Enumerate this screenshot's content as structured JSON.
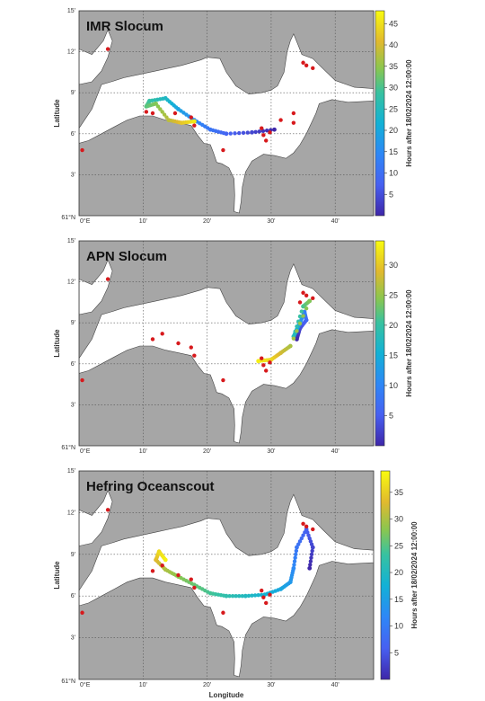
{
  "panels": [
    {
      "title": "IMR Slocum",
      "cbar_max": 48,
      "cbar_ticks": [
        "5",
        "10",
        "15",
        "20",
        "25",
        "30",
        "35",
        "40",
        "45"
      ],
      "cbar_tick_values": [
        5,
        10,
        15,
        20,
        25,
        30,
        35,
        40,
        45
      ],
      "cbar_label": "Hours after 18/02/2024 12:00:00",
      "ylabel": "Latitude",
      "xlabel": "",
      "lat_ticks": [
        "3'",
        "6'",
        "9'",
        "12'",
        "15'"
      ],
      "lon_ticks": [
        "10'",
        "20'",
        "30'",
        "40'"
      ],
      "origin_lat": "61°N",
      "origin_lon": "0°E",
      "track": [
        {
          "x": 30.5,
          "y": 6.3,
          "t": 0
        },
        {
          "x": 27,
          "y": 6.1,
          "t": 4
        },
        {
          "x": 23,
          "y": 6.0,
          "t": 8
        },
        {
          "x": 20.5,
          "y": 6.3,
          "t": 11
        },
        {
          "x": 18,
          "y": 7.0,
          "t": 15
        },
        {
          "x": 15.5,
          "y": 7.8,
          "t": 19
        },
        {
          "x": 13.5,
          "y": 8.6,
          "t": 24
        },
        {
          "x": 11,
          "y": 8.4,
          "t": 28
        },
        {
          "x": 10.5,
          "y": 8.0,
          "t": 31
        },
        {
          "x": 12,
          "y": 8.2,
          "t": 34
        },
        {
          "x": 14,
          "y": 7.0,
          "t": 38
        },
        {
          "x": 16,
          "y": 6.8,
          "t": 42
        },
        {
          "x": 18,
          "y": 6.9,
          "t": 46
        }
      ],
      "stations": [
        {
          "x": 4.5,
          "y": 12.2
        },
        {
          "x": 0.5,
          "y": 4.8
        },
        {
          "x": 10.5,
          "y": 7.6
        },
        {
          "x": 11.5,
          "y": 7.5
        },
        {
          "x": 15,
          "y": 7.5
        },
        {
          "x": 17.5,
          "y": 7.2
        },
        {
          "x": 18,
          "y": 6.6
        },
        {
          "x": 22.5,
          "y": 4.8
        },
        {
          "x": 28.5,
          "y": 6.4
        },
        {
          "x": 28.8,
          "y": 5.9
        },
        {
          "x": 29.2,
          "y": 5.5
        },
        {
          "x": 29.8,
          "y": 6.1
        },
        {
          "x": 31.5,
          "y": 7.0
        },
        {
          "x": 33.5,
          "y": 7.5
        },
        {
          "x": 33.5,
          "y": 6.8
        },
        {
          "x": 35,
          "y": 11.2
        },
        {
          "x": 35.5,
          "y": 11.0
        },
        {
          "x": 36.5,
          "y": 10.8
        }
      ]
    },
    {
      "title": "APN Slocum",
      "cbar_max": 34,
      "cbar_ticks": [
        "5",
        "10",
        "15",
        "20",
        "25",
        "30"
      ],
      "cbar_tick_values": [
        5,
        10,
        15,
        20,
        25,
        30
      ],
      "cbar_label": "Hours after 18/02/2024 12:00:00",
      "ylabel": "Latitude",
      "xlabel": "",
      "lat_ticks": [
        "3'",
        "6'",
        "9'",
        "12'",
        "15'"
      ],
      "lon_ticks": [
        "10'",
        "20'",
        "30'",
        "40'"
      ],
      "origin_lat": "61°N",
      "origin_lon": "0°E",
      "track": [
        {
          "x": 34,
          "y": 7.8,
          "t": 0
        },
        {
          "x": 34.5,
          "y": 8.6,
          "t": 3
        },
        {
          "x": 35.5,
          "y": 9.2,
          "t": 6
        },
        {
          "x": 35.2,
          "y": 9.8,
          "t": 9
        },
        {
          "x": 34.5,
          "y": 9.0,
          "t": 12
        },
        {
          "x": 34.0,
          "y": 8.5,
          "t": 15
        },
        {
          "x": 33.5,
          "y": 8.0,
          "t": 18
        },
        {
          "x": 35,
          "y": 10.2,
          "t": 21
        },
        {
          "x": 36,
          "y": 10.6,
          "t": 24
        },
        {
          "x": 33,
          "y": 7.3,
          "t": 26
        },
        {
          "x": 31.5,
          "y": 6.8,
          "t": 28
        },
        {
          "x": 30,
          "y": 6.3,
          "t": 31
        },
        {
          "x": 28,
          "y": 6.2,
          "t": 33
        }
      ],
      "stations": [
        {
          "x": 4.5,
          "y": 12.2
        },
        {
          "x": 0.5,
          "y": 4.8
        },
        {
          "x": 11.5,
          "y": 7.8
        },
        {
          "x": 13,
          "y": 8.2
        },
        {
          "x": 15.5,
          "y": 7.5
        },
        {
          "x": 17.5,
          "y": 7.2
        },
        {
          "x": 18,
          "y": 6.6
        },
        {
          "x": 22.5,
          "y": 4.8
        },
        {
          "x": 28.5,
          "y": 6.4
        },
        {
          "x": 28.8,
          "y": 5.9
        },
        {
          "x": 29.2,
          "y": 5.5
        },
        {
          "x": 29.8,
          "y": 6.1
        },
        {
          "x": 35,
          "y": 11.2
        },
        {
          "x": 35.5,
          "y": 11.0
        },
        {
          "x": 36.5,
          "y": 10.8
        },
        {
          "x": 34.5,
          "y": 10.5
        }
      ]
    },
    {
      "title": "Hefring Oceanscout",
      "cbar_max": 39,
      "cbar_ticks": [
        "5",
        "10",
        "15",
        "20",
        "25",
        "30",
        "35"
      ],
      "cbar_tick_values": [
        5,
        10,
        15,
        20,
        25,
        30,
        35
      ],
      "cbar_label": "Hours after 18/02/2024 12:00:00",
      "ylabel": "Latitude",
      "xlabel": "Longitude",
      "lat_ticks": [
        "3'",
        "6'",
        "9'",
        "12'",
        "15'"
      ],
      "lon_ticks": [
        "10'",
        "20'",
        "30'",
        "40'"
      ],
      "origin_lat": "61°N",
      "origin_lon": "0°E",
      "track": [
        {
          "x": 36,
          "y": 8.0,
          "t": 0
        },
        {
          "x": 36.5,
          "y": 9.5,
          "t": 3
        },
        {
          "x": 35.5,
          "y": 10.8,
          "t": 6
        },
        {
          "x": 34,
          "y": 9.5,
          "t": 9
        },
        {
          "x": 33.5,
          "y": 8.0,
          "t": 12
        },
        {
          "x": 33,
          "y": 7.0,
          "t": 14
        },
        {
          "x": 31.5,
          "y": 6.5,
          "t": 16
        },
        {
          "x": 29,
          "y": 6.1,
          "t": 18
        },
        {
          "x": 26,
          "y": 6.0,
          "t": 20
        },
        {
          "x": 23,
          "y": 6.0,
          "t": 22
        },
        {
          "x": 20.5,
          "y": 6.2,
          "t": 24
        },
        {
          "x": 18,
          "y": 6.8,
          "t": 26
        },
        {
          "x": 15.5,
          "y": 7.4,
          "t": 28
        },
        {
          "x": 13.5,
          "y": 7.9,
          "t": 30
        },
        {
          "x": 12,
          "y": 8.6,
          "t": 33
        },
        {
          "x": 12.5,
          "y": 9.2,
          "t": 36
        },
        {
          "x": 13.5,
          "y": 8.6,
          "t": 38
        }
      ],
      "stations": [
        {
          "x": 4.5,
          "y": 12.2
        },
        {
          "x": 0.5,
          "y": 4.8
        },
        {
          "x": 11.5,
          "y": 7.8
        },
        {
          "x": 13,
          "y": 8.2
        },
        {
          "x": 15.5,
          "y": 7.5
        },
        {
          "x": 17.5,
          "y": 7.2
        },
        {
          "x": 18,
          "y": 6.6
        },
        {
          "x": 22.5,
          "y": 4.8
        },
        {
          "x": 28.5,
          "y": 6.4
        },
        {
          "x": 28.8,
          "y": 5.9
        },
        {
          "x": 29.2,
          "y": 5.5
        },
        {
          "x": 29.8,
          "y": 6.1
        },
        {
          "x": 35,
          "y": 11.2
        },
        {
          "x": 35.5,
          "y": 11.0
        },
        {
          "x": 36.5,
          "y": 10.8
        }
      ]
    }
  ],
  "colors": {
    "land": "#a6a6a6",
    "sea": "#ffffff",
    "station": "#d7191c"
  }
}
